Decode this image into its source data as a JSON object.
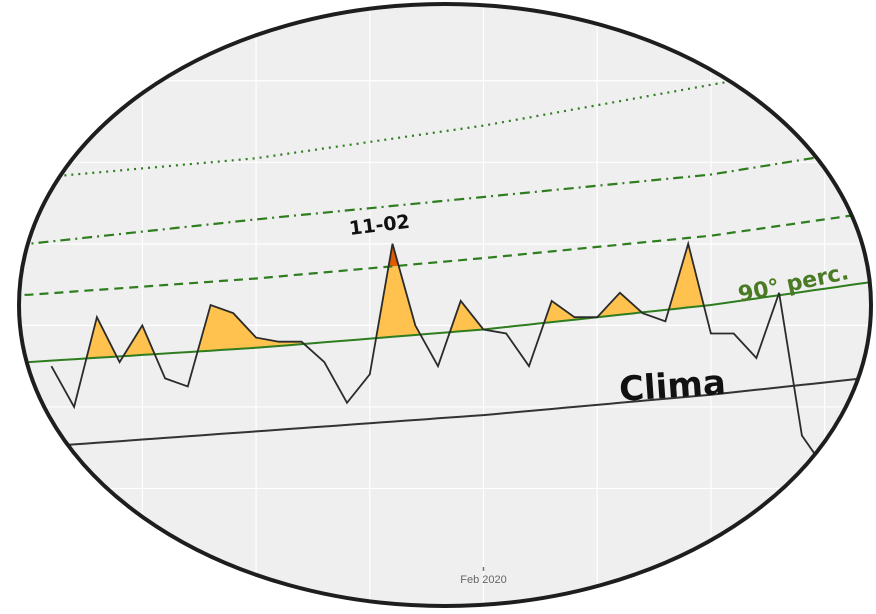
{
  "chart_data": {
    "type": "line",
    "x_label_ticks": [
      "Feb 2020"
    ],
    "series": [
      {
        "values": [
          [
            -14,
            5.0
          ],
          [
            -13,
            4.0
          ],
          [
            -12,
            6.2
          ],
          [
            -11,
            5.1
          ],
          [
            -10,
            6.0
          ],
          [
            -9,
            4.7
          ],
          [
            -8,
            4.5
          ],
          [
            -7,
            6.5
          ],
          [
            -6,
            6.3
          ],
          [
            -5,
            5.7
          ],
          [
            -4,
            5.6
          ],
          [
            -3,
            5.6
          ],
          [
            -2,
            5.1
          ],
          [
            -1,
            4.1
          ],
          [
            0,
            4.8
          ],
          [
            1,
            8.0
          ],
          [
            2,
            6.0
          ],
          [
            3,
            5.0
          ],
          [
            4,
            6.6
          ],
          [
            5,
            5.9
          ],
          [
            6,
            5.8
          ],
          [
            7,
            5.0
          ],
          [
            8,
            6.6
          ],
          [
            9,
            6.2
          ],
          [
            10,
            6.2
          ],
          [
            11,
            6.8
          ],
          [
            12,
            6.3
          ],
          [
            13,
            6.1
          ],
          [
            14,
            8.0
          ],
          [
            15,
            5.8
          ],
          [
            16,
            5.8
          ],
          [
            17,
            5.2
          ],
          [
            18,
            6.8
          ],
          [
            19,
            3.3
          ],
          [
            20,
            2.5
          ]
        ]
      }
    ],
    "threshold_lines": [
      {
        "name": "90° perc.",
        "color": "#2e7d1f",
        "style": "solid",
        "values": [
          [
            -15,
            5.1
          ],
          [
            -5,
            5.45
          ],
          [
            5,
            5.9
          ],
          [
            15,
            6.5
          ],
          [
            25,
            7.3
          ]
        ]
      },
      {
        "style": "dashed",
        "color": "#2e7d1f",
        "values": [
          [
            -15,
            6.75
          ],
          [
            -5,
            7.15
          ],
          [
            5,
            7.65
          ],
          [
            15,
            8.2
          ],
          [
            25,
            9.0
          ]
        ]
      },
      {
        "style": "dashdot",
        "color": "#2e7d1f",
        "values": [
          [
            -15,
            8.0
          ],
          [
            -5,
            8.6
          ],
          [
            5,
            9.15
          ],
          [
            15,
            9.7
          ],
          [
            25,
            10.6
          ]
        ]
      },
      {
        "style": "dotted",
        "color": "#2e7d1f",
        "values": [
          [
            -15,
            9.6
          ],
          [
            -5,
            10.1
          ],
          [
            5,
            10.9
          ],
          [
            15,
            11.9
          ],
          [
            25,
            12.9
          ]
        ]
      },
      {
        "name": "Clima",
        "color": "#333333",
        "style": "solid",
        "values": [
          [
            -15,
            3.0
          ],
          [
            -5,
            3.4
          ],
          [
            5,
            3.8
          ],
          [
            15,
            4.3
          ],
          [
            25,
            4.9
          ]
        ]
      }
    ],
    "annotations": [
      {
        "text": "11-02",
        "x": 1,
        "y": 8.0
      }
    ],
    "fill_above_threshold": {
      "color": "#ffc24f",
      "extreme_color": "#e15a00"
    },
    "grid": true,
    "xlim": [
      -14.5,
      20.5
    ],
    "ylim": [
      0,
      13
    ]
  },
  "labels": {
    "perc_text": "90° perc.",
    "clima_text": "Clima",
    "date_text": "11-02",
    "axis_tick": "Feb 2020"
  }
}
